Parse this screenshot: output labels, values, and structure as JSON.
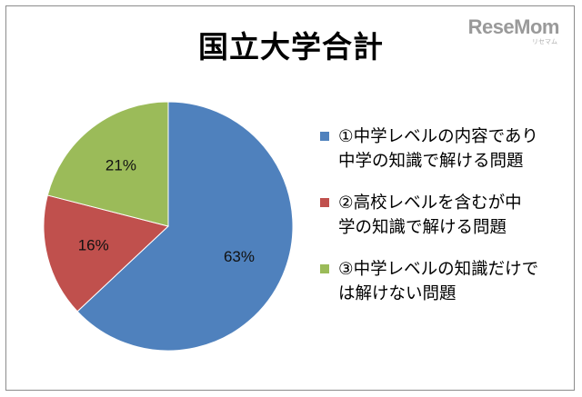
{
  "watermark": {
    "brand": "ReseMom",
    "sub": "リセマム"
  },
  "chart_data": {
    "type": "pie",
    "title": "国立大学合計",
    "slices": [
      {
        "label_lines": [
          "①中学レベルの内容であり",
          "中学の知識で解ける問題"
        ],
        "value": 63,
        "display": "63%",
        "color": "#4f81bd"
      },
      {
        "label_lines": [
          "②高校レベルを含むが中",
          "学の知識で解ける問題"
        ],
        "value": 16,
        "display": "16%",
        "color": "#c0504d"
      },
      {
        "label_lines": [
          "③中学レベルの知識だけで",
          "は解けない問題"
        ],
        "value": 21,
        "display": "21%",
        "color": "#9bbb59"
      }
    ],
    "start_angle_deg": 0,
    "direction": "clockwise",
    "legend_position": "right"
  }
}
